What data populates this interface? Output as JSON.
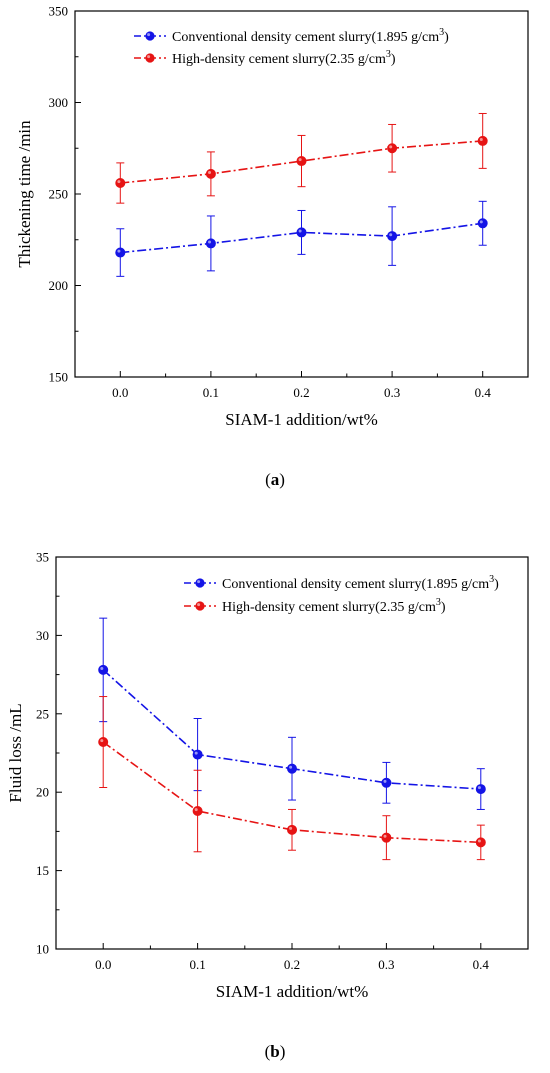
{
  "chart_data": [
    {
      "type": "line",
      "panel_label": "a",
      "xlabel": "SIAM-1 addition/wt%",
      "ylabel": "Thickening time /min",
      "x": [
        0.0,
        0.1,
        0.2,
        0.3,
        0.4
      ],
      "xticks": [
        "0.0",
        "0.1",
        "0.2",
        "0.3",
        "0.4"
      ],
      "xlim": [
        -0.05,
        0.45
      ],
      "ylim": [
        150,
        350
      ],
      "yticks": [
        150,
        200,
        250,
        300,
        350
      ],
      "legend_position": "top-left",
      "grid": false,
      "series": [
        {
          "name": "Conventional density cement slurry(1.895 g/cm3)",
          "name_prefix": "Conventional density cement slurry(1.895 g/cm",
          "name_sup": "3",
          "name_suffix": ")",
          "color": "#1414e6",
          "values": [
            218,
            223,
            229,
            227,
            234
          ],
          "errors": [
            13,
            15,
            12,
            16,
            12
          ]
        },
        {
          "name": "High-density cement slurry(2.35 g/cm3)",
          "name_prefix": "High-density cement slurry(2.35 g/cm",
          "name_sup": "3",
          "name_suffix": ")",
          "color": "#e61414",
          "values": [
            256,
            261,
            268,
            275,
            279
          ],
          "errors": [
            11,
            12,
            14,
            13,
            15
          ]
        }
      ]
    },
    {
      "type": "line",
      "panel_label": "b",
      "xlabel": "SIAM-1 addition/wt%",
      "ylabel": "Fluid loss /mL",
      "x": [
        0.0,
        0.1,
        0.2,
        0.3,
        0.4
      ],
      "xticks": [
        "0.0",
        "0.1",
        "0.2",
        "0.3",
        "0.4"
      ],
      "xlim": [
        -0.05,
        0.45
      ],
      "ylim": [
        10,
        35
      ],
      "yticks": [
        10,
        15,
        20,
        25,
        30,
        35
      ],
      "legend_position": "top-right",
      "grid": false,
      "series": [
        {
          "name": "Conventional density cement slurry(1.895 g/cm3)",
          "name_prefix": "Conventional density cement slurry(1.895 g/cm",
          "name_sup": "3",
          "name_suffix": ")",
          "color": "#1414e6",
          "values": [
            27.8,
            22.4,
            21.5,
            20.6,
            20.2
          ],
          "errors": [
            3.3,
            2.3,
            2.0,
            1.3,
            1.3
          ]
        },
        {
          "name": "High-density cement slurry(2.35 g/cm3)",
          "name_prefix": "High-density cement slurry(2.35 g/cm",
          "name_sup": "3",
          "name_suffix": ")",
          "color": "#e61414",
          "values": [
            23.2,
            18.8,
            17.6,
            17.1,
            16.8
          ],
          "errors": [
            2.9,
            2.6,
            1.3,
            1.4,
            1.1
          ]
        }
      ]
    }
  ]
}
